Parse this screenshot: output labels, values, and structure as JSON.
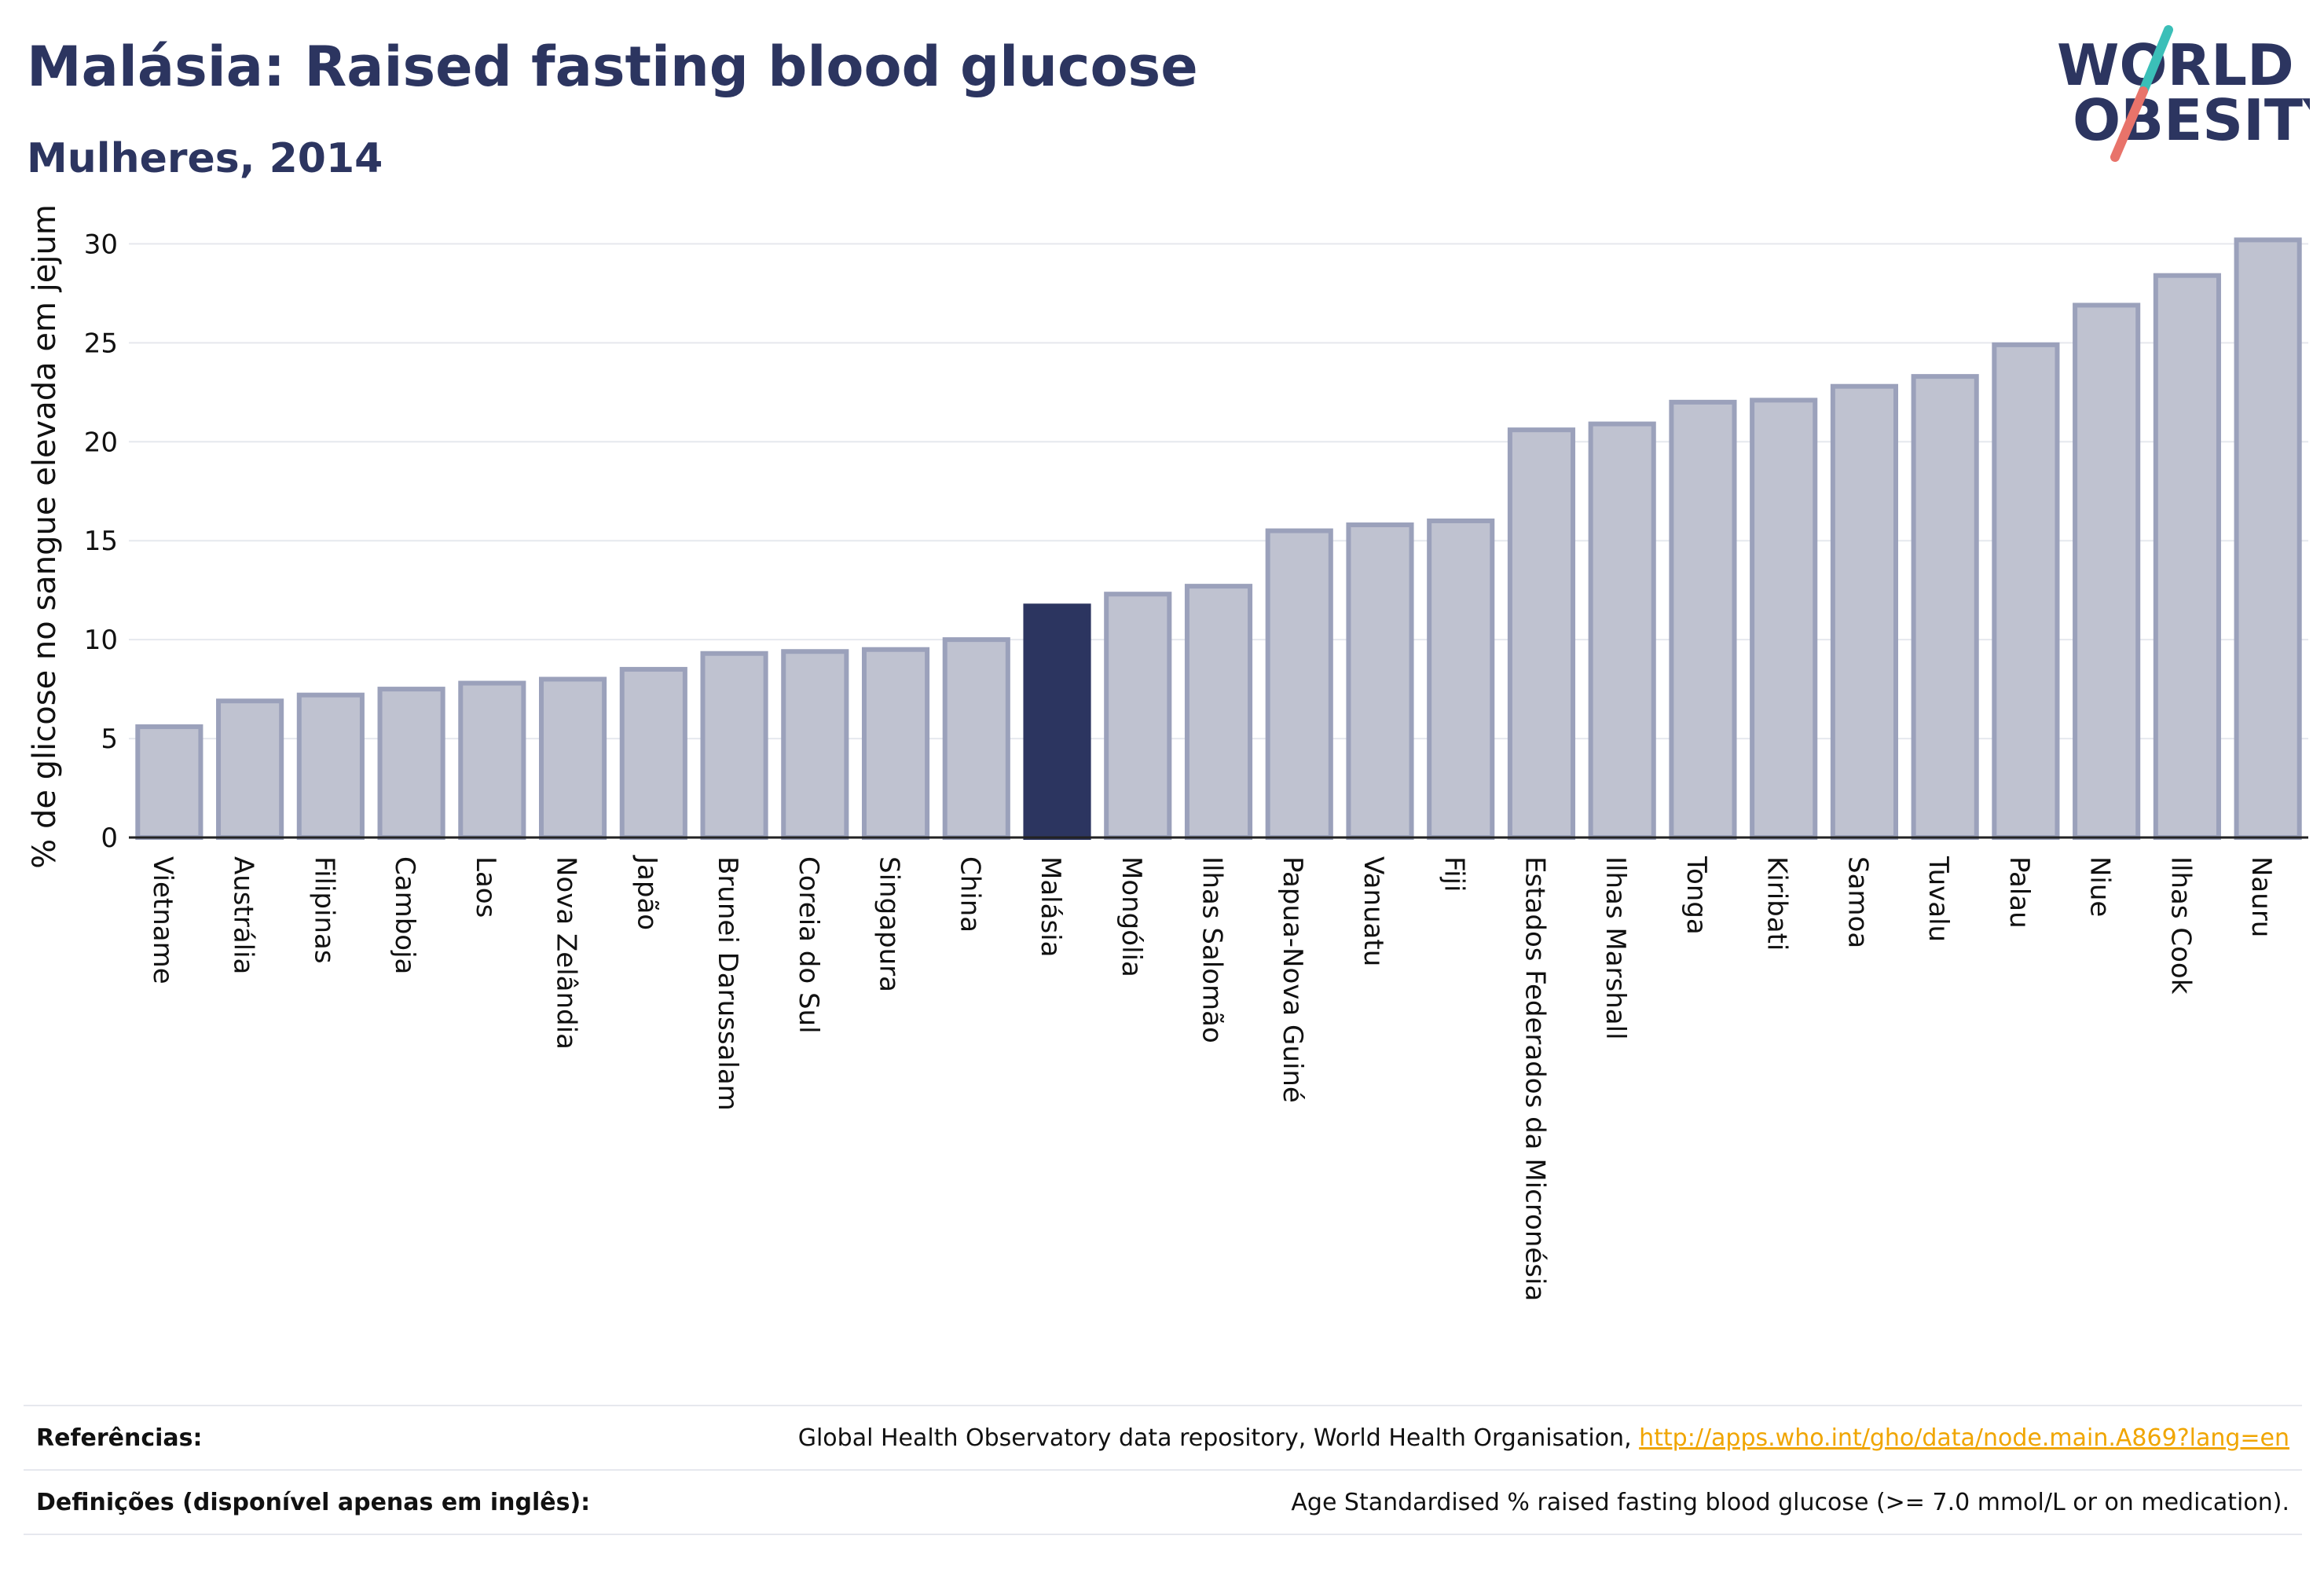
{
  "header": {
    "title": "Malásia: Raised fasting blood glucose",
    "subtitle": "Mulheres, 2014"
  },
  "logo": {
    "line1": "WORLD",
    "line2": "OBESITY"
  },
  "colors": {
    "bar_fill": "#bfc2d0",
    "bar_stroke": "#9ba1bb",
    "highlight": "#2c3560",
    "accent_teal": "#3bbfb8",
    "accent_coral": "#e8736a",
    "grid": "#e6e8ee"
  },
  "chart_data": {
    "type": "bar",
    "ylabel": "% de glicose no sangue elevada em jejum",
    "ylim": [
      0,
      32
    ],
    "yticks": [
      0,
      5,
      10,
      15,
      20,
      25,
      30
    ],
    "highlight_category": "Malásia",
    "categories": [
      "Vietname",
      "Austrália",
      "Filipinas",
      "Camboja",
      "Laos",
      "Nova Zelândia",
      "Japão",
      "Brunei Darussalam",
      "Coreia do Sul",
      "Singapura",
      "China",
      "Malásia",
      "Mongólia",
      "Ilhas Salomão",
      "Papua-Nova Guiné",
      "Vanuatu",
      "Fiji",
      "Estados Federados da Micronésia",
      "Ilhas Marshall",
      "Tonga",
      "Kiribati",
      "Samoa",
      "Tuvalu",
      "Palau",
      "Niue",
      "Ilhas Cook",
      "Nauru"
    ],
    "values": [
      5.6,
      6.9,
      7.2,
      7.5,
      7.8,
      8.0,
      8.5,
      9.3,
      9.4,
      9.5,
      10.0,
      11.7,
      12.3,
      12.7,
      15.5,
      15.8,
      16.0,
      20.6,
      20.9,
      22.0,
      22.1,
      22.8,
      23.3,
      24.9,
      26.9,
      28.4,
      30.2
    ]
  },
  "footer": {
    "references_label": "Referências:",
    "references_text": "Global Health Observatory data repository, World Health Organisation, ",
    "references_link": "http://apps.who.int/gho/data/node.main.A869?lang=en",
    "definitions_label": "Definições (disponível apenas em inglês):",
    "definitions_text": "Age Standardised % raised fasting blood glucose (>= 7.0 mmol/L or on medication)."
  }
}
